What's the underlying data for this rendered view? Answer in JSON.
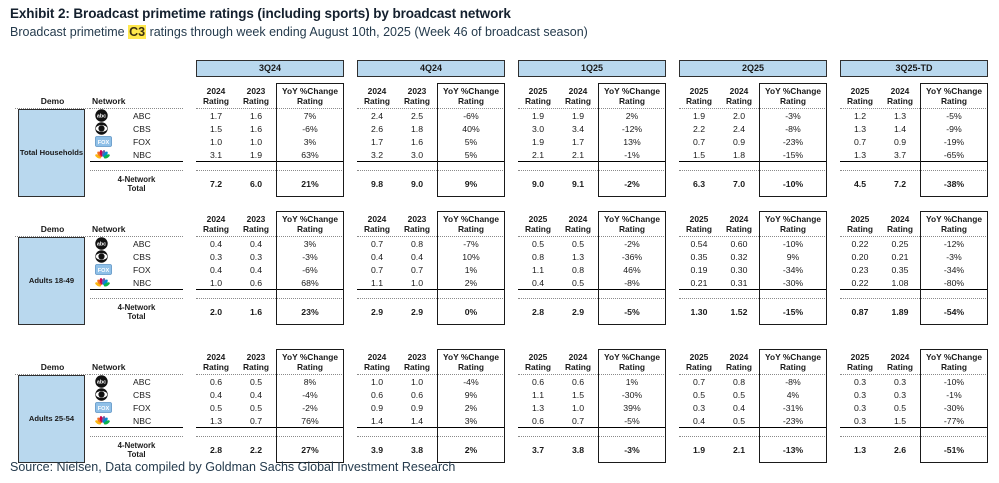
{
  "header": {
    "title": "Exhibit 2: Broadcast primetime ratings (including sports) by broadcast network",
    "subtitle_prefix": "Broadcast primetime ",
    "subtitle_highlight": "C3",
    "subtitle_suffix": " ratings through week ending August 10th, 2025 (Week 46 of broadcast season)"
  },
  "footer": {
    "source": "Source: Nielsen, Data compiled by Goldman Sachs Global Investment Research"
  },
  "colors": {
    "accent_light_blue": "#B9D8EE",
    "highlight_yellow": "#FFE84D",
    "heading_navy": "#14202e"
  },
  "table": {
    "left_headers": {
      "demo": "Demo",
      "network": "Network"
    },
    "rating_sublabel": "Rating",
    "yoy_label": "YoY %Change",
    "total_label_line1": "4-Network",
    "total_label_line2": "Total",
    "quarters": [
      {
        "label": "3Q24",
        "col1_year": "2024",
        "col2_year": "2023"
      },
      {
        "label": "4Q24",
        "col1_year": "2024",
        "col2_year": "2023"
      },
      {
        "label": "1Q25",
        "col1_year": "2025",
        "col2_year": "2024"
      },
      {
        "label": "2Q25",
        "col1_year": "2025",
        "col2_year": "2024"
      },
      {
        "label": "3Q25-TD",
        "col1_year": "2025",
        "col2_year": "2024"
      }
    ],
    "networks": [
      {
        "name": "ABC",
        "icon": "abc-logo"
      },
      {
        "name": "CBS",
        "icon": "cbs-logo"
      },
      {
        "name": "FOX",
        "icon": "fox-logo"
      },
      {
        "name": "NBC",
        "icon": "nbc-logo"
      }
    ],
    "sections": [
      {
        "demo": "Total Households",
        "rows": [
          {
            "network": "ABC",
            "cells": [
              [
                "1.7",
                "1.6",
                "7%"
              ],
              [
                "2.4",
                "2.5",
                "-6%"
              ],
              [
                "1.9",
                "1.9",
                "2%"
              ],
              [
                "1.9",
                "2.0",
                "-3%"
              ],
              [
                "1.2",
                "1.3",
                "-5%"
              ]
            ]
          },
          {
            "network": "CBS",
            "cells": [
              [
                "1.5",
                "1.6",
                "-6%"
              ],
              [
                "2.6",
                "1.8",
                "40%"
              ],
              [
                "3.0",
                "3.4",
                "-12%"
              ],
              [
                "2.2",
                "2.4",
                "-8%"
              ],
              [
                "1.3",
                "1.4",
                "-9%"
              ]
            ]
          },
          {
            "network": "FOX",
            "cells": [
              [
                "1.0",
                "1.0",
                "3%"
              ],
              [
                "1.7",
                "1.6",
                "5%"
              ],
              [
                "1.9",
                "1.7",
                "13%"
              ],
              [
                "0.7",
                "0.9",
                "-23%"
              ],
              [
                "0.7",
                "0.9",
                "-19%"
              ]
            ]
          },
          {
            "network": "NBC",
            "cells": [
              [
                "3.1",
                "1.9",
                "63%"
              ],
              [
                "3.2",
                "3.0",
                "5%"
              ],
              [
                "2.1",
                "2.1",
                "-1%"
              ],
              [
                "1.5",
                "1.8",
                "-15%"
              ],
              [
                "1.3",
                "3.7",
                "-65%"
              ]
            ]
          }
        ],
        "total": [
          [
            "7.2",
            "6.0",
            "21%"
          ],
          [
            "9.8",
            "9.0",
            "9%"
          ],
          [
            "9.0",
            "9.1",
            "-2%"
          ],
          [
            "6.3",
            "7.0",
            "-10%"
          ],
          [
            "4.5",
            "7.2",
            "-38%"
          ]
        ]
      },
      {
        "demo": "Adults 18-49",
        "rows": [
          {
            "network": "ABC",
            "cells": [
              [
                "0.4",
                "0.4",
                "3%"
              ],
              [
                "0.7",
                "0.8",
                "-7%"
              ],
              [
                "0.5",
                "0.5",
                "-2%"
              ],
              [
                "0.54",
                "0.60",
                "-10%"
              ],
              [
                "0.22",
                "0.25",
                "-12%"
              ]
            ]
          },
          {
            "network": "CBS",
            "cells": [
              [
                "0.3",
                "0.3",
                "-3%"
              ],
              [
                "0.4",
                "0.4",
                "10%"
              ],
              [
                "0.8",
                "1.3",
                "-36%"
              ],
              [
                "0.35",
                "0.32",
                "9%"
              ],
              [
                "0.20",
                "0.21",
                "-3%"
              ]
            ]
          },
          {
            "network": "FOX",
            "cells": [
              [
                "0.4",
                "0.4",
                "-6%"
              ],
              [
                "0.7",
                "0.7",
                "1%"
              ],
              [
                "1.1",
                "0.8",
                "46%"
              ],
              [
                "0.19",
                "0.30",
                "-34%"
              ],
              [
                "0.23",
                "0.35",
                "-34%"
              ]
            ]
          },
          {
            "network": "NBC",
            "cells": [
              [
                "1.0",
                "0.6",
                "68%"
              ],
              [
                "1.1",
                "1.0",
                "2%"
              ],
              [
                "0.4",
                "0.5",
                "-8%"
              ],
              [
                "0.21",
                "0.31",
                "-30%"
              ],
              [
                "0.22",
                "1.08",
                "-80%"
              ]
            ]
          }
        ],
        "total": [
          [
            "2.0",
            "1.6",
            "23%"
          ],
          [
            "2.9",
            "2.9",
            "0%"
          ],
          [
            "2.8",
            "2.9",
            "-5%"
          ],
          [
            "1.30",
            "1.52",
            "-15%"
          ],
          [
            "0.87",
            "1.89",
            "-54%"
          ]
        ]
      },
      {
        "demo": "Adults 25-54",
        "rows": [
          {
            "network": "ABC",
            "cells": [
              [
                "0.6",
                "0.5",
                "8%"
              ],
              [
                "1.0",
                "1.0",
                "-4%"
              ],
              [
                "0.6",
                "0.6",
                "1%"
              ],
              [
                "0.7",
                "0.8",
                "-8%"
              ],
              [
                "0.3",
                "0.3",
                "-10%"
              ]
            ]
          },
          {
            "network": "CBS",
            "cells": [
              [
                "0.4",
                "0.4",
                "-4%"
              ],
              [
                "0.6",
                "0.6",
                "9%"
              ],
              [
                "1.1",
                "1.5",
                "-30%"
              ],
              [
                "0.5",
                "0.5",
                "4%"
              ],
              [
                "0.3",
                "0.3",
                "-1%"
              ]
            ]
          },
          {
            "network": "FOX",
            "cells": [
              [
                "0.5",
                "0.5",
                "-2%"
              ],
              [
                "0.9",
                "0.9",
                "2%"
              ],
              [
                "1.3",
                "1.0",
                "39%"
              ],
              [
                "0.3",
                "0.4",
                "-31%"
              ],
              [
                "0.3",
                "0.5",
                "-30%"
              ]
            ]
          },
          {
            "network": "NBC",
            "cells": [
              [
                "1.3",
                "0.7",
                "76%"
              ],
              [
                "1.4",
                "1.4",
                "3%"
              ],
              [
                "0.6",
                "0.7",
                "-5%"
              ],
              [
                "0.4",
                "0.5",
                "-23%"
              ],
              [
                "0.3",
                "1.5",
                "-77%"
              ]
            ]
          }
        ],
        "total": [
          [
            "2.8",
            "2.2",
            "27%"
          ],
          [
            "3.9",
            "3.8",
            "2%"
          ],
          [
            "3.7",
            "3.8",
            "-3%"
          ],
          [
            "1.9",
            "2.1",
            "-13%"
          ],
          [
            "1.3",
            "2.6",
            "-51%"
          ]
        ]
      }
    ]
  }
}
